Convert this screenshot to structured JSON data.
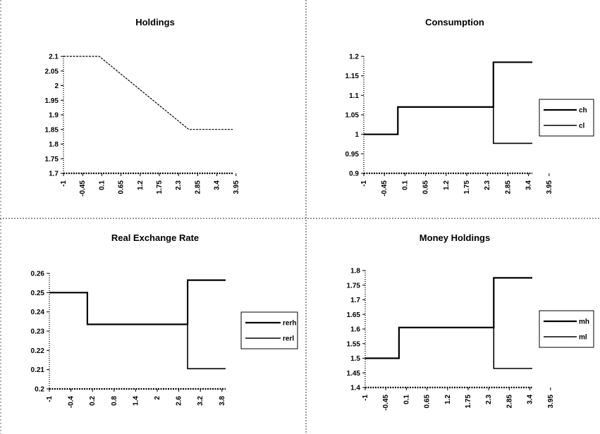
{
  "chart_data": [
    {
      "type": "line",
      "title": "Holdings",
      "xticks": [
        "-1",
        "-0.45",
        "0.1",
        "0.65",
        "1.2",
        "1.75",
        "2.3",
        "2.85",
        "3.4",
        "3.95"
      ],
      "yticks": [
        "1.7",
        "1.75",
        "1.8",
        "1.85",
        "1.9",
        "1.95",
        "2",
        "2.05",
        "2.1"
      ],
      "xlim": [
        -1,
        4.2
      ],
      "ylim": [
        1.7,
        2.1
      ],
      "grid": false,
      "legend": "none",
      "series": [
        {
          "values": [
            [
              -1,
              2.1
            ],
            [
              0.1,
              2.1
            ],
            [
              2.85,
              1.85
            ],
            [
              4.2,
              1.85
            ]
          ]
        }
      ]
    },
    {
      "type": "line",
      "title": "Consumption",
      "xticks": [
        "-1",
        "-0.45",
        "0.1",
        "0.65",
        "1.2",
        "1.75",
        "2.3",
        "2.85",
        "3.4",
        "3.95"
      ],
      "yticks": [
        "0.9",
        "0.95",
        "1",
        "1.05",
        "1.1",
        "1.15",
        "1.2"
      ],
      "xlim": [
        -1,
        4.2
      ],
      "ylim": [
        0.9,
        1.2
      ],
      "grid": false,
      "legend": "right",
      "series": [
        {
          "name": "ch",
          "values": [
            [
              -1,
              1.0
            ],
            [
              0.05,
              1.0
            ],
            [
              0.05,
              1.07
            ],
            [
              3.0,
              1.07
            ],
            [
              3.0,
              1.185
            ],
            [
              4.2,
              1.185
            ]
          ]
        },
        {
          "name": "cl",
          "values": [
            [
              -1,
              1.0
            ],
            [
              0.05,
              1.0
            ],
            [
              0.05,
              1.07
            ],
            [
              3.0,
              1.07
            ],
            [
              3.0,
              0.977
            ],
            [
              4.2,
              0.977
            ]
          ]
        }
      ]
    },
    {
      "type": "line",
      "title": "Real Exchange Rate",
      "xticks": [
        "-1",
        "-0.4",
        "0.2",
        "0.8",
        "1.4",
        "2",
        "2.6",
        "3.2",
        "3.8"
      ],
      "yticks": [
        "0.2",
        "0.21",
        "0.22",
        "0.23",
        "0.24",
        "0.25",
        "0.26"
      ],
      "xlim": [
        -1,
        4.1
      ],
      "ylim": [
        0.2,
        0.26
      ],
      "grid": false,
      "legend": "right",
      "series": [
        {
          "name": "rerh",
          "values": [
            [
              -1,
              0.25
            ],
            [
              0.1,
              0.25
            ],
            [
              0.1,
              0.2335
            ],
            [
              3.0,
              0.2335
            ],
            [
              3.0,
              0.2565
            ],
            [
              4.1,
              0.2565
            ]
          ]
        },
        {
          "name": "rerl",
          "values": [
            [
              -1,
              0.25
            ],
            [
              0.1,
              0.25
            ],
            [
              0.1,
              0.2335
            ],
            [
              3.0,
              0.2335
            ],
            [
              3.0,
              0.2105
            ],
            [
              4.1,
              0.2105
            ]
          ]
        }
      ]
    },
    {
      "type": "line",
      "title": "Money Holdings",
      "xticks": [
        "-1",
        "-0.45",
        "0.1",
        "0.65",
        "1.2",
        "1.75",
        "2.3",
        "2.85",
        "3.4",
        "3.95"
      ],
      "yticks": [
        "1.4",
        "1.45",
        "1.5",
        "1.55",
        "1.6",
        "1.65",
        "1.7",
        "1.75",
        "1.8"
      ],
      "xlim": [
        -1,
        4.2
      ],
      "ylim": [
        1.4,
        1.8
      ],
      "grid": false,
      "legend": "right",
      "series": [
        {
          "name": "mh",
          "values": [
            [
              -1,
              1.5
            ],
            [
              0.05,
              1.5
            ],
            [
              0.05,
              1.605
            ],
            [
              3.0,
              1.605
            ],
            [
              3.0,
              1.775
            ],
            [
              4.2,
              1.775
            ]
          ]
        },
        {
          "name": "ml",
          "values": [
            [
              -1,
              1.5
            ],
            [
              0.05,
              1.5
            ],
            [
              0.05,
              1.605
            ],
            [
              3.0,
              1.605
            ],
            [
              3.0,
              1.465
            ],
            [
              4.2,
              1.465
            ]
          ]
        }
      ]
    }
  ]
}
